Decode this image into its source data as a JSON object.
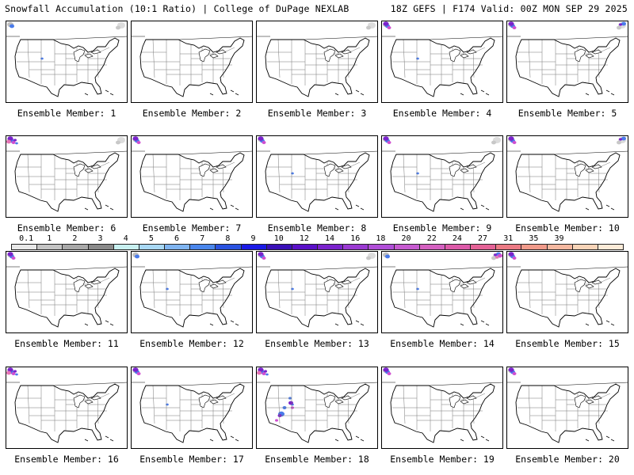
{
  "header": {
    "left": "Snowfall Accumulation (10:1 Ratio) | College of DuPage NEXLAB",
    "right": "18Z GEFS | F174 Valid: 00Z MON SEP 29 2025"
  },
  "panels": [
    {
      "label": "Ensemble Member: 1",
      "nw": 1,
      "co": 1,
      "ne": 1,
      "sw": 0
    },
    {
      "label": "Ensemble Member: 2",
      "nw": 0,
      "co": 0,
      "ne": 0,
      "sw": 0
    },
    {
      "label": "Ensemble Member: 3",
      "nw": 0,
      "co": 0,
      "ne": 1,
      "sw": 0
    },
    {
      "label": "Ensemble Member: 4",
      "nw": 2,
      "co": 1,
      "ne": 0,
      "sw": 0
    },
    {
      "label": "Ensemble Member: 5",
      "nw": 2,
      "co": 0,
      "ne": 2,
      "sw": 0
    },
    {
      "label": "Ensemble Member: 6",
      "nw": 3,
      "co": 0,
      "ne": 1,
      "sw": 0
    },
    {
      "label": "Ensemble Member: 7",
      "nw": 2,
      "co": 0,
      "ne": 0,
      "sw": 0
    },
    {
      "label": "Ensemble Member: 8",
      "nw": 2,
      "co": 1,
      "ne": 0,
      "sw": 0
    },
    {
      "label": "Ensemble Member: 9",
      "nw": 2,
      "co": 1,
      "ne": 1,
      "sw": 0
    },
    {
      "label": "Ensemble Member: 10",
      "nw": 2,
      "co": 0,
      "ne": 2,
      "sw": 0
    },
    {
      "label": "Ensemble Member: 11",
      "nw": 2,
      "co": 0,
      "ne": 0,
      "sw": 0
    },
    {
      "label": "Ensemble Member: 12",
      "nw": 1,
      "co": 1,
      "ne": 0,
      "sw": 0
    },
    {
      "label": "Ensemble Member: 13",
      "nw": 2,
      "co": 1,
      "ne": 1,
      "sw": 0
    },
    {
      "label": "Ensemble Member: 14",
      "nw": 1,
      "co": 1,
      "ne": 3,
      "sw": 0
    },
    {
      "label": "Ensemble Member: 15",
      "nw": 2,
      "co": 0,
      "ne": 0,
      "sw": 0
    },
    {
      "label": "Ensemble Member: 16",
      "nw": 3,
      "co": 0,
      "ne": 0,
      "sw": 0
    },
    {
      "label": "Ensemble Member: 17",
      "nw": 2,
      "co": 1,
      "ne": 0,
      "sw": 0
    },
    {
      "label": "Ensemble Member: 18",
      "nw": 3,
      "co": 2,
      "ne": 0,
      "sw": 3
    },
    {
      "label": "Ensemble Member: 19",
      "nw": 2,
      "co": 0,
      "ne": 0,
      "sw": 0
    },
    {
      "label": "Ensemble Member: 20",
      "nw": 2,
      "co": 0,
      "ne": 0,
      "sw": 0
    }
  ],
  "colorbar": {
    "labels": [
      "0.1",
      "1",
      "2",
      "3",
      "4",
      "5",
      "6",
      "7",
      "8",
      "9",
      "10",
      "12",
      "14",
      "16",
      "18",
      "20",
      "22",
      "24",
      "27",
      "31",
      "35",
      "39"
    ],
    "colors": [
      "#e8e8e8",
      "#c4c4c4",
      "#a8a8a8",
      "#8a8a8a",
      "#c8f0f0",
      "#a8d8f4",
      "#7fb4f0",
      "#4a86ec",
      "#2a52e0",
      "#1a1ae6",
      "#3a10b8",
      "#5a10c8",
      "#7a22cc",
      "#9a3ad2",
      "#b04ed8",
      "#c65ad0",
      "#d460c0",
      "#dc5aa8",
      "#e46296",
      "#ec7a84",
      "#f09a8a",
      "#f4b8a0",
      "#f8d4b8",
      "#fdebd8"
    ],
    "snow_colors": {
      "light": "#bfbfbf",
      "blue": "#4a7bea",
      "violet": "#7a22cc",
      "magenta": "#d04fd0",
      "pink": "#e673b4"
    }
  }
}
